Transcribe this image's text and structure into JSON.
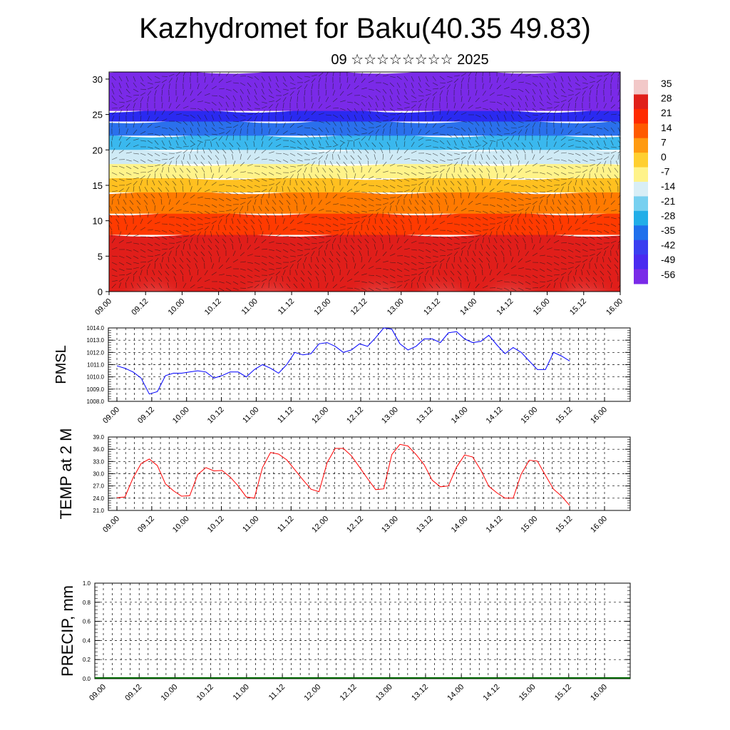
{
  "header": {
    "title": "Kazhydromet for Baku(40.35 49.83)",
    "subtitle": "09 ☆☆☆☆☆☆☆☆ 2025"
  },
  "colorbar": {
    "labels": [
      "35",
      "28",
      "21",
      "14",
      "7",
      "0",
      "-7",
      "-14",
      "-21",
      "-28",
      "-35",
      "-42",
      "-49",
      "-56"
    ],
    "colors": [
      "#f2c8c8",
      "#e0201a",
      "#ff2a00",
      "#ff5a00",
      "#ff9a10",
      "#ffcf30",
      "#fff38a",
      "#d8eef6",
      "#77d0f0",
      "#22aee8",
      "#2070ec",
      "#3a3ef0",
      "#4a2af0",
      "#7a2ae8"
    ]
  },
  "chart_data": [
    {
      "type": "heatmap",
      "title": "",
      "xlabel": "",
      "ylabel": "",
      "ylim": [
        0,
        31
      ],
      "yticks": [
        "0",
        "5",
        "10",
        "15",
        "20",
        "25",
        "30"
      ],
      "xticks": [
        "09.00",
        "09.12",
        "10.00",
        "10.12",
        "11.00",
        "11.12",
        "12.00",
        "12.12",
        "13.00",
        "13.12",
        "14.00",
        "14.12",
        "15.00",
        "15.12",
        "16.00"
      ],
      "levels": [
        {
          "from": 0,
          "to": 8,
          "color": "#e01e1a"
        },
        {
          "from": 8,
          "to": 11,
          "color": "#ff3a00"
        },
        {
          "from": 11,
          "to": 14,
          "color": "#ff7a00"
        },
        {
          "from": 14,
          "to": 16,
          "color": "#ffc020"
        },
        {
          "from": 16,
          "to": 18,
          "color": "#fff38a"
        },
        {
          "from": 18,
          "to": 20,
          "color": "#cfeaf5"
        },
        {
          "from": 20,
          "to": 22,
          "color": "#3ab8ee"
        },
        {
          "from": 22,
          "to": 24,
          "color": "#2a70ec"
        },
        {
          "from": 24,
          "to": 25.5,
          "color": "#2a2af0"
        },
        {
          "from": 25.5,
          "to": 31,
          "color": "#7a2ae8"
        }
      ],
      "warm_spots_x": [
        1.2,
        4.4,
        7.4,
        9.1,
        11.0,
        13.0
      ]
    },
    {
      "type": "line",
      "ylabel": "PMSL",
      "ylim": [
        1008.0,
        1014.0
      ],
      "yticks": [
        "1008.0",
        "1009.0",
        "1010.0",
        "1011.0",
        "1012.0",
        "1013.0",
        "1014.0"
      ],
      "xticks": [
        "09.00",
        "09.12",
        "10.00",
        "10.12",
        "11.00",
        "11.12",
        "12.00",
        "12.12",
        "13.00",
        "13.12",
        "14.00",
        "14.12",
        "15.00",
        "15.12",
        "16.00"
      ],
      "color": "#0000ff",
      "values": [
        1010.9,
        1010.7,
        1010.4,
        1009.9,
        1008.6,
        1008.8,
        1010.1,
        1010.3,
        1010.3,
        1010.4,
        1010.5,
        1010.4,
        1009.9,
        1010.1,
        1010.4,
        1010.4,
        1010.0,
        1010.6,
        1011.0,
        1010.7,
        1010.3,
        1011.0,
        1012.0,
        1011.8,
        1011.9,
        1012.7,
        1012.8,
        1012.5,
        1012.0,
        1012.2,
        1012.7,
        1012.5,
        1013.2,
        1014.0,
        1013.9,
        1012.7,
        1012.2,
        1012.5,
        1013.1,
        1013.1,
        1012.8,
        1013.6,
        1013.7,
        1013.1,
        1012.8,
        1012.9,
        1013.4,
        1012.6,
        1011.9,
        1012.4,
        1012.0,
        1011.3,
        1010.6,
        1010.6,
        1012.0,
        1011.7,
        1011.3
      ]
    },
    {
      "type": "line",
      "ylabel": "TEMP at 2 M",
      "ylim": [
        21.0,
        39.0
      ],
      "yticks": [
        "21.0",
        "24.0",
        "27.0",
        "30.0",
        "33.0",
        "36.0",
        "39.0"
      ],
      "xticks": [
        "09.00",
        "09.12",
        "10.00",
        "10.12",
        "11.00",
        "11.12",
        "12.00",
        "12.12",
        "13.00",
        "13.12",
        "14.00",
        "14.12",
        "15.00",
        "15.12",
        "16.00"
      ],
      "color": "#ff0000",
      "values": [
        24.1,
        24.3,
        29.0,
        32.5,
        33.6,
        32.0,
        27.5,
        25.8,
        24.5,
        24.6,
        29.8,
        31.5,
        30.7,
        30.8,
        29.2,
        27.0,
        24.3,
        24.0,
        31.5,
        35.2,
        34.8,
        33.4,
        31.0,
        28.5,
        26.2,
        25.6,
        32.7,
        36.2,
        36.2,
        34.4,
        31.6,
        28.8,
        26.1,
        26.3,
        34.7,
        37.2,
        36.8,
        34.7,
        32.2,
        28.4,
        26.8,
        27.0,
        31.6,
        34.6,
        34.1,
        30.9,
        26.9,
        25.3,
        24.0,
        24.0,
        29.9,
        33.3,
        33.1,
        29.6,
        26.2,
        24.5,
        22.2
      ]
    },
    {
      "type": "bar",
      "ylabel": "PRECIP, mm",
      "ylim": [
        0.0,
        1.0
      ],
      "yticks": [
        "0.0",
        "0.2",
        "0.4",
        "0.6",
        "0.8",
        "1.0"
      ],
      "xticks": [
        "09.00",
        "09.12",
        "10.00",
        "10.12",
        "11.00",
        "11.12",
        "12.00",
        "12.12",
        "13.00",
        "13.12",
        "14.00",
        "14.12",
        "15.00",
        "15.12",
        "16.00"
      ],
      "color": "#006400",
      "values": [
        0,
        0,
        0,
        0,
        0,
        0,
        0,
        0,
        0,
        0,
        0,
        0,
        0,
        0,
        0,
        0,
        0,
        0,
        0,
        0,
        0,
        0,
        0,
        0,
        0,
        0,
        0,
        0,
        0,
        0,
        0,
        0,
        0,
        0,
        0,
        0,
        0,
        0,
        0,
        0,
        0,
        0,
        0,
        0,
        0,
        0,
        0,
        0,
        0,
        0,
        0,
        0,
        0,
        0,
        0,
        0,
        0
      ]
    }
  ]
}
